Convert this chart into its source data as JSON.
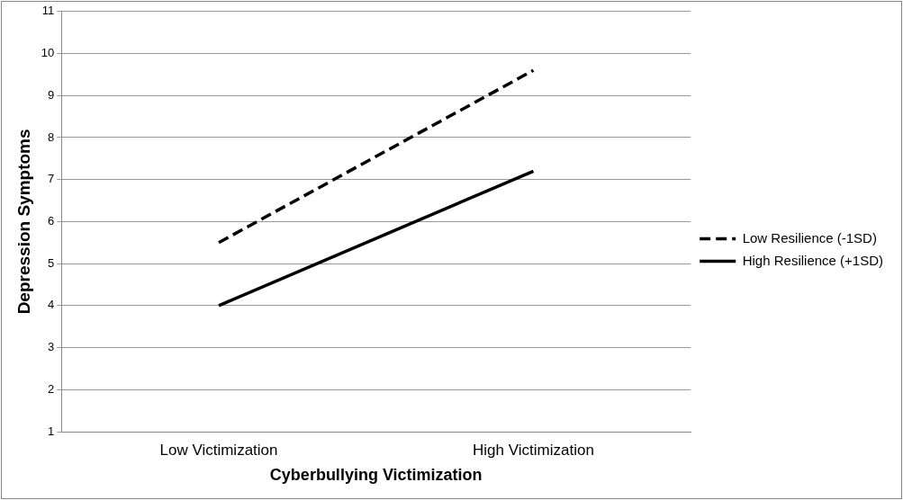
{
  "chart_data": {
    "type": "line",
    "xlabel": "Cyberbullying Victimization",
    "ylabel": "Depression Symptoms",
    "categories": [
      "Low Victimization",
      "High Victimization"
    ],
    "series": [
      {
        "name": "Low Resilience (-1SD)",
        "color": "#000000",
        "values": [
          5.5,
          9.6
        ],
        "line_style": "dashed"
      },
      {
        "name": "High Resilience (+1SD)",
        "color": "#000000",
        "values": [
          4.0,
          7.2
        ],
        "line_style": "solid"
      }
    ],
    "ylim": [
      1,
      11
    ],
    "yticks": [
      1,
      2,
      3,
      4,
      5,
      6,
      7,
      8,
      9,
      10,
      11
    ],
    "grid": "y",
    "legend": "right",
    "marker": "none"
  }
}
